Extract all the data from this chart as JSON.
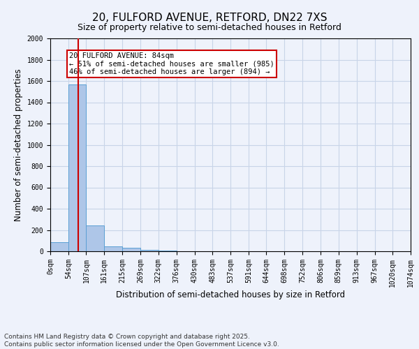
{
  "title_line1": "20, FULFORD AVENUE, RETFORD, DN22 7XS",
  "title_line2": "Size of property relative to semi-detached houses in Retford",
  "xlabel": "Distribution of semi-detached houses by size in Retford",
  "ylabel": "Number of semi-detached properties",
  "bin_edges": [
    0,
    54,
    107,
    161,
    215,
    269,
    322,
    376,
    430,
    483,
    537,
    591,
    644,
    698,
    752,
    806,
    859,
    913,
    967,
    1020,
    1074
  ],
  "bin_labels": [
    "0sqm",
    "54sqm",
    "107sqm",
    "161sqm",
    "215sqm",
    "269sqm",
    "322sqm",
    "376sqm",
    "430sqm",
    "483sqm",
    "537sqm",
    "591sqm",
    "644sqm",
    "698sqm",
    "752sqm",
    "806sqm",
    "859sqm",
    "913sqm",
    "967sqm",
    "1020sqm",
    "1074sqm"
  ],
  "bar_heights": [
    85,
    1565,
    240,
    45,
    30,
    15,
    5,
    2,
    1,
    1,
    0,
    0,
    0,
    0,
    0,
    0,
    0,
    0,
    0,
    0
  ],
  "bar_color": "#aec6e8",
  "bar_edge_color": "#5a9fd4",
  "property_size": 84,
  "red_line_color": "#cc0000",
  "annotation_text": "20 FULFORD AVENUE: 84sqm\n← 51% of semi-detached houses are smaller (985)\n46% of semi-detached houses are larger (894) →",
  "annotation_box_color": "#ffffff",
  "annotation_box_edge": "#cc0000",
  "ylim": [
    0,
    2000
  ],
  "yticks": [
    0,
    200,
    400,
    600,
    800,
    1000,
    1200,
    1400,
    1600,
    1800,
    2000
  ],
  "footer_line1": "Contains HM Land Registry data © Crown copyright and database right 2025.",
  "footer_line2": "Contains public sector information licensed under the Open Government Licence v3.0.",
  "background_color": "#eef2fb",
  "grid_color": "#c8d4e8",
  "title_fontsize": 11,
  "subtitle_fontsize": 9,
  "axis_label_fontsize": 8.5,
  "tick_fontsize": 7,
  "annotation_fontsize": 7.5,
  "footer_fontsize": 6.5
}
